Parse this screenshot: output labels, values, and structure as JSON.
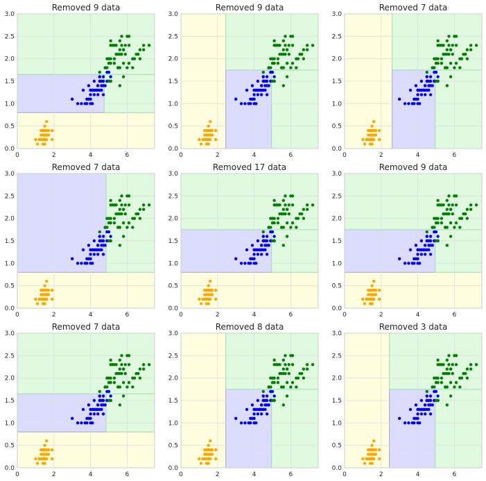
{
  "figure": {
    "layout": {
      "rows": 3,
      "cols": 3
    },
    "style": {
      "grid": true,
      "background": "#ffffff",
      "grid_color": "#dddddd",
      "axes_edge_color": "#cccccc"
    },
    "region_colors": {
      "yellow": "#ffffe0",
      "blue": "#dcdcff",
      "green": "#e0fae0"
    },
    "region_edge_colors": {
      "yellow": "#c8c8a0",
      "blue": "#a6a6df",
      "green": "#a6dfb4"
    },
    "point_colors": {
      "setosa": "#ffa500",
      "versicolor": "#0000ff",
      "virginica": "#008000"
    }
  },
  "chart_data": [
    {
      "type": "scatter",
      "title": "Removed 9 data",
      "xlim": [
        0,
        7.5
      ],
      "ylim": [
        0,
        3.0
      ],
      "xticks": [
        "0",
        "2",
        "4",
        "6"
      ],
      "yticks": [
        "0.0",
        "0.5",
        "1.0",
        "1.5",
        "2.0",
        "2.5",
        "3.0"
      ],
      "regions": [
        {
          "class": "yellow",
          "x": [
            0,
            7.5
          ],
          "y": [
            0,
            0.8
          ]
        },
        {
          "class": "blue",
          "x": [
            0,
            4.75
          ],
          "y": [
            0.8,
            1.65
          ]
        },
        {
          "class": "green",
          "x": [
            4.75,
            7.5
          ],
          "y": [
            0.8,
            1.65
          ]
        },
        {
          "class": "green",
          "x": [
            0,
            7.5
          ],
          "y": [
            1.65,
            3.0
          ]
        }
      ]
    },
    {
      "type": "scatter",
      "title": "Removed 9 data",
      "xlim": [
        0,
        7.5
      ],
      "ylim": [
        0,
        3.0
      ],
      "xticks": [
        "0",
        "2",
        "4",
        "6"
      ],
      "yticks": [
        "0.0",
        "0.5",
        "1.0",
        "1.5",
        "2.0",
        "2.5",
        "3.0"
      ],
      "regions": [
        {
          "class": "yellow",
          "x": [
            0,
            2.45
          ],
          "y": [
            0,
            3.0
          ]
        },
        {
          "class": "blue",
          "x": [
            2.45,
            4.95
          ],
          "y": [
            0,
            1.75
          ]
        },
        {
          "class": "green",
          "x": [
            4.95,
            7.5
          ],
          "y": [
            0,
            1.75
          ]
        },
        {
          "class": "green",
          "x": [
            2.45,
            7.5
          ],
          "y": [
            1.75,
            3.0
          ]
        }
      ]
    },
    {
      "type": "scatter",
      "title": "Removed 7 data",
      "xlim": [
        0,
        7.5
      ],
      "ylim": [
        0,
        3.0
      ],
      "xticks": [
        "0",
        "2",
        "4",
        "6"
      ],
      "yticks": [
        "0.0",
        "0.5",
        "1.0",
        "1.5",
        "2.0",
        "2.5",
        "3.0"
      ],
      "regions": [
        {
          "class": "yellow",
          "x": [
            0,
            2.6
          ],
          "y": [
            0,
            3.0
          ]
        },
        {
          "class": "blue",
          "x": [
            2.6,
            4.95
          ],
          "y": [
            0,
            1.75
          ]
        },
        {
          "class": "green",
          "x": [
            4.95,
            7.5
          ],
          "y": [
            0,
            1.75
          ]
        },
        {
          "class": "green",
          "x": [
            2.6,
            7.5
          ],
          "y": [
            1.75,
            3.0
          ]
        }
      ]
    },
    {
      "type": "scatter",
      "title": "Removed 7 data",
      "xlim": [
        0,
        7.5
      ],
      "ylim": [
        0,
        3.0
      ],
      "xticks": [
        "0",
        "2",
        "4",
        "6"
      ],
      "yticks": [
        "0.0",
        "0.5",
        "1.0",
        "1.5",
        "2.0",
        "2.5",
        "3.0"
      ],
      "regions": [
        {
          "class": "yellow",
          "x": [
            0,
            7.5
          ],
          "y": [
            0,
            0.8
          ]
        },
        {
          "class": "blue",
          "x": [
            0,
            4.85
          ],
          "y": [
            0.8,
            3.0
          ]
        },
        {
          "class": "green",
          "x": [
            4.85,
            7.5
          ],
          "y": [
            0.8,
            3.0
          ]
        }
      ]
    },
    {
      "type": "scatter",
      "title": "Removed 17 data",
      "xlim": [
        0,
        7.5
      ],
      "ylim": [
        0,
        3.0
      ],
      "xticks": [
        "0",
        "2",
        "4",
        "6"
      ],
      "yticks": [
        "0.0",
        "0.5",
        "1.0",
        "1.5",
        "2.0",
        "2.5",
        "3.0"
      ],
      "regions": [
        {
          "class": "yellow",
          "x": [
            0,
            7.5
          ],
          "y": [
            0,
            0.8
          ]
        },
        {
          "class": "blue",
          "x": [
            0,
            4.95
          ],
          "y": [
            0.8,
            1.75
          ]
        },
        {
          "class": "green",
          "x": [
            4.95,
            7.5
          ],
          "y": [
            0.8,
            1.75
          ]
        },
        {
          "class": "green",
          "x": [
            0,
            7.5
          ],
          "y": [
            1.75,
            3.0
          ]
        }
      ]
    },
    {
      "type": "scatter",
      "title": "Removed 9 data",
      "xlim": [
        0,
        7.5
      ],
      "ylim": [
        0,
        3.0
      ],
      "xticks": [
        "0",
        "2",
        "4",
        "6"
      ],
      "yticks": [
        "0.0",
        "0.5",
        "1.0",
        "1.5",
        "2.0",
        "2.5",
        "3.0"
      ],
      "regions": [
        {
          "class": "yellow",
          "x": [
            0,
            7.5
          ],
          "y": [
            0,
            0.8
          ]
        },
        {
          "class": "blue",
          "x": [
            0,
            4.95
          ],
          "y": [
            0.8,
            1.75
          ]
        },
        {
          "class": "green",
          "x": [
            4.95,
            7.5
          ],
          "y": [
            0.8,
            1.75
          ]
        },
        {
          "class": "green",
          "x": [
            0,
            7.5
          ],
          "y": [
            1.75,
            3.0
          ]
        }
      ]
    },
    {
      "type": "scatter",
      "title": "Removed 7 data",
      "xlim": [
        0,
        7.5
      ],
      "ylim": [
        0,
        3.0
      ],
      "xticks": [
        "0",
        "2",
        "4",
        "6"
      ],
      "yticks": [
        "0.0",
        "0.5",
        "1.0",
        "1.5",
        "2.0",
        "2.5",
        "3.0"
      ],
      "regions": [
        {
          "class": "yellow",
          "x": [
            0,
            7.5
          ],
          "y": [
            0,
            0.8
          ]
        },
        {
          "class": "blue",
          "x": [
            0,
            4.85
          ],
          "y": [
            0.8,
            1.65
          ]
        },
        {
          "class": "green",
          "x": [
            4.85,
            7.5
          ],
          "y": [
            0.8,
            1.65
          ]
        },
        {
          "class": "green",
          "x": [
            0,
            7.5
          ],
          "y": [
            1.65,
            3.0
          ]
        }
      ]
    },
    {
      "type": "scatter",
      "title": "Removed 8 data",
      "xlim": [
        0,
        7.5
      ],
      "ylim": [
        0,
        3.0
      ],
      "xticks": [
        "0",
        "2",
        "4",
        "6"
      ],
      "yticks": [
        "0.0",
        "0.5",
        "1.0",
        "1.5",
        "2.0",
        "2.5",
        "3.0"
      ],
      "regions": [
        {
          "class": "yellow",
          "x": [
            0,
            2.45
          ],
          "y": [
            0,
            3.0
          ]
        },
        {
          "class": "blue",
          "x": [
            2.45,
            4.95
          ],
          "y": [
            0,
            1.75
          ]
        },
        {
          "class": "green",
          "x": [
            4.95,
            7.5
          ],
          "y": [
            0,
            1.75
          ]
        },
        {
          "class": "green",
          "x": [
            2.45,
            7.5
          ],
          "y": [
            1.75,
            3.0
          ]
        }
      ]
    },
    {
      "type": "scatter",
      "title": "Removed 3 data",
      "xlim": [
        0,
        7.5
      ],
      "ylim": [
        0,
        3.0
      ],
      "xticks": [
        "0",
        "2",
        "4",
        "6"
      ],
      "yticks": [
        "0.0",
        "0.5",
        "1.0",
        "1.5",
        "2.0",
        "2.5",
        "3.0"
      ],
      "regions": [
        {
          "class": "yellow",
          "x": [
            0,
            2.45
          ],
          "y": [
            0,
            3.0
          ]
        },
        {
          "class": "blue",
          "x": [
            2.45,
            4.95
          ],
          "y": [
            0,
            1.75
          ]
        },
        {
          "class": "green",
          "x": [
            4.95,
            7.5
          ],
          "y": [
            0,
            1.75
          ]
        },
        {
          "class": "green",
          "x": [
            2.45,
            7.5
          ],
          "y": [
            1.75,
            3.0
          ]
        }
      ]
    }
  ],
  "points": {
    "setosa": [
      [
        1.4,
        0.2
      ],
      [
        1.3,
        0.2
      ],
      [
        1.5,
        0.2
      ],
      [
        1.7,
        0.4
      ],
      [
        1.4,
        0.3
      ],
      [
        1.5,
        0.1
      ],
      [
        1.6,
        0.2
      ],
      [
        1.1,
        0.1
      ],
      [
        1.2,
        0.2
      ],
      [
        1.3,
        0.4
      ],
      [
        1.7,
        0.3
      ],
      [
        1.5,
        0.3
      ],
      [
        1.0,
        0.2
      ],
      [
        1.9,
        0.2
      ],
      [
        1.6,
        0.4
      ],
      [
        1.4,
        0.1
      ],
      [
        1.6,
        0.6
      ],
      [
        1.9,
        0.4
      ],
      [
        1.5,
        0.4
      ],
      [
        1.5,
        0.5
      ],
      [
        1.2,
        0.2
      ],
      [
        1.3,
        0.3
      ],
      [
        1.6,
        0.3
      ],
      [
        1.4,
        0.4
      ],
      [
        1.5,
        0.2
      ]
    ],
    "versicolor": [
      [
        4.7,
        1.4
      ],
      [
        4.5,
        1.5
      ],
      [
        4.9,
        1.5
      ],
      [
        4.0,
        1.3
      ],
      [
        4.6,
        1.5
      ],
      [
        4.5,
        1.3
      ],
      [
        4.7,
        1.6
      ],
      [
        3.3,
        1.0
      ],
      [
        4.6,
        1.3
      ],
      [
        3.9,
        1.4
      ],
      [
        3.5,
        1.0
      ],
      [
        4.2,
        1.5
      ],
      [
        4.0,
        1.0
      ],
      [
        3.6,
        1.3
      ],
      [
        4.4,
        1.4
      ],
      [
        4.1,
        1.0
      ],
      [
        4.5,
        1.5
      ],
      [
        3.9,
        1.1
      ],
      [
        4.8,
        1.8
      ],
      [
        4.0,
        1.3
      ],
      [
        4.9,
        1.5
      ],
      [
        4.7,
        1.2
      ],
      [
        4.3,
        1.3
      ],
      [
        4.4,
        1.4
      ],
      [
        4.8,
        1.4
      ],
      [
        5.0,
        1.7
      ],
      [
        3.8,
        1.1
      ],
      [
        3.7,
        1.0
      ],
      [
        5.1,
        1.6
      ],
      [
        4.5,
        1.6
      ],
      [
        4.4,
        1.3
      ],
      [
        4.1,
        1.3
      ],
      [
        4.0,
        1.2
      ],
      [
        4.4,
        1.2
      ],
      [
        4.6,
        1.4
      ],
      [
        3.0,
        1.1
      ],
      [
        4.2,
        1.3
      ],
      [
        4.2,
        1.2
      ],
      [
        4.3,
        1.3
      ],
      [
        4.1,
        1.3
      ],
      [
        4.0,
        1.1
      ],
      [
        3.8,
        1.0
      ],
      [
        4.7,
        1.5
      ],
      [
        4.5,
        1.6
      ],
      [
        4.9,
        1.7
      ],
      [
        5.1,
        1.5
      ]
    ],
    "virginica": [
      [
        6.0,
        2.5
      ],
      [
        5.1,
        1.9
      ],
      [
        5.9,
        2.1
      ],
      [
        5.6,
        1.8
      ],
      [
        5.8,
        2.2
      ],
      [
        6.6,
        2.1
      ],
      [
        4.5,
        1.7
      ],
      [
        6.3,
        1.8
      ],
      [
        6.1,
        2.5
      ],
      [
        5.1,
        2.0
      ],
      [
        5.3,
        1.9
      ],
      [
        5.5,
        2.1
      ],
      [
        5.0,
        2.0
      ],
      [
        5.1,
        2.4
      ],
      [
        5.3,
        2.3
      ],
      [
        5.5,
        1.8
      ],
      [
        6.7,
        2.2
      ],
      [
        6.9,
        2.3
      ],
      [
        5.0,
        1.5
      ],
      [
        5.7,
        2.3
      ],
      [
        4.9,
        2.0
      ],
      [
        6.7,
        2.0
      ],
      [
        4.9,
        1.8
      ],
      [
        5.7,
        2.1
      ],
      [
        6.0,
        1.8
      ],
      [
        4.8,
        1.8
      ],
      [
        5.6,
        2.1
      ],
      [
        5.8,
        1.6
      ],
      [
        6.4,
        2.0
      ],
      [
        5.6,
        2.2
      ],
      [
        5.1,
        1.5
      ],
      [
        5.6,
        1.4
      ],
      [
        6.1,
        2.3
      ],
      [
        5.6,
        2.4
      ],
      [
        5.5,
        1.8
      ],
      [
        5.4,
        2.1
      ],
      [
        5.1,
        2.3
      ],
      [
        5.9,
        2.3
      ],
      [
        5.7,
        2.5
      ],
      [
        5.2,
        2.3
      ],
      [
        5.4,
        2.3
      ],
      [
        6.3,
        2.0
      ],
      [
        5.8,
        2.2
      ],
      [
        6.1,
        1.9
      ],
      [
        7.2,
        2.3
      ],
      [
        5.3,
        2.0
      ],
      [
        6.9,
        2.2
      ],
      [
        5.8,
        1.9
      ],
      [
        6.5,
        2.1
      ],
      [
        5.0,
        1.9
      ]
    ]
  }
}
